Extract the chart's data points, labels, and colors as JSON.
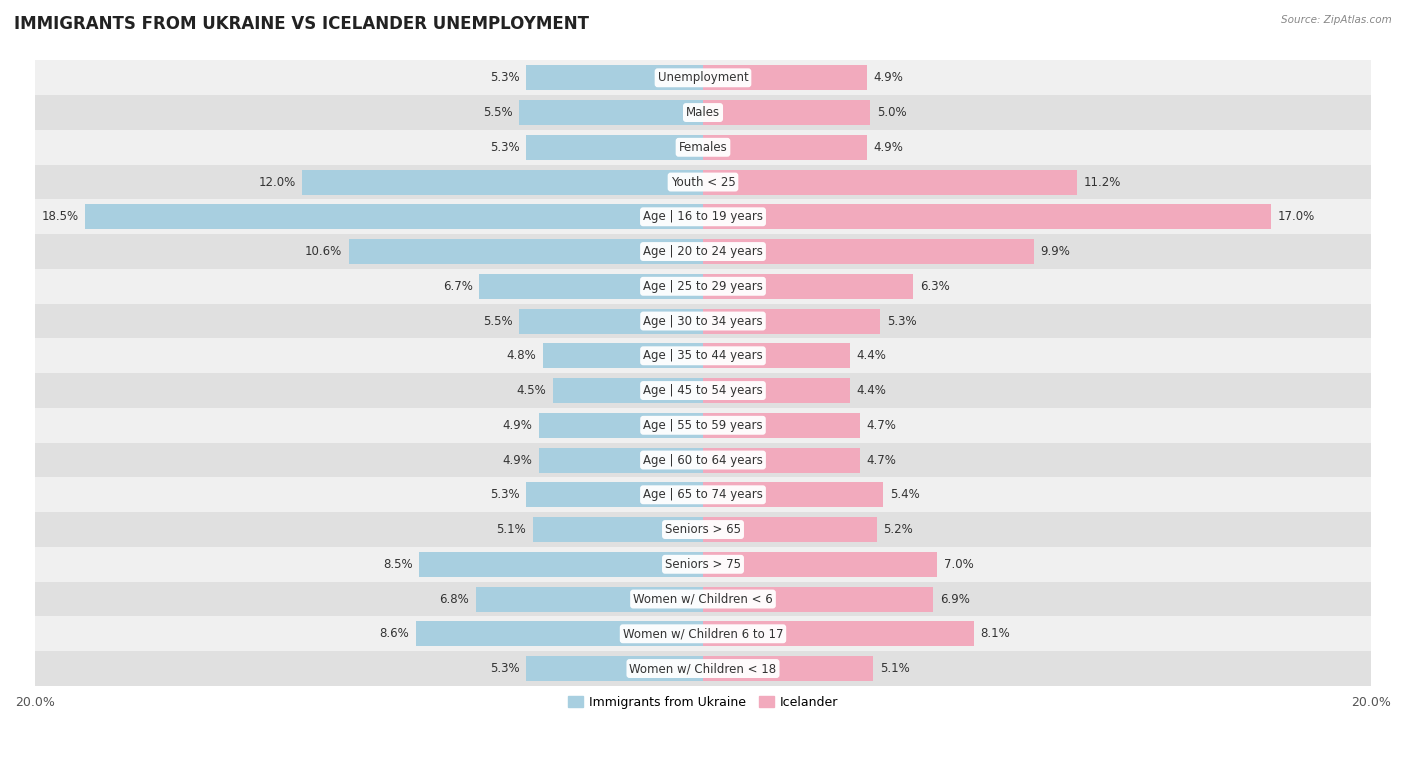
{
  "title": "IMMIGRANTS FROM UKRAINE VS ICELANDER UNEMPLOYMENT",
  "source": "Source: ZipAtlas.com",
  "categories": [
    "Unemployment",
    "Males",
    "Females",
    "Youth < 25",
    "Age | 16 to 19 years",
    "Age | 20 to 24 years",
    "Age | 25 to 29 years",
    "Age | 30 to 34 years",
    "Age | 35 to 44 years",
    "Age | 45 to 54 years",
    "Age | 55 to 59 years",
    "Age | 60 to 64 years",
    "Age | 65 to 74 years",
    "Seniors > 65",
    "Seniors > 75",
    "Women w/ Children < 6",
    "Women w/ Children 6 to 17",
    "Women w/ Children < 18"
  ],
  "ukraine_values": [
    5.3,
    5.5,
    5.3,
    12.0,
    18.5,
    10.6,
    6.7,
    5.5,
    4.8,
    4.5,
    4.9,
    4.9,
    5.3,
    5.1,
    8.5,
    6.8,
    8.6,
    5.3
  ],
  "icelander_values": [
    4.9,
    5.0,
    4.9,
    11.2,
    17.0,
    9.9,
    6.3,
    5.3,
    4.4,
    4.4,
    4.7,
    4.7,
    5.4,
    5.2,
    7.0,
    6.9,
    8.1,
    5.1
  ],
  "ukraine_color": "#a8cfe0",
  "icelander_color": "#f2aabd",
  "ukraine_label": "Immigrants from Ukraine",
  "icelander_label": "Icelander",
  "row_bg_light": "#f0f0f0",
  "row_bg_dark": "#e0e0e0",
  "max_val": 20.0,
  "title_fontsize": 12,
  "label_fontsize": 8.5,
  "value_fontsize": 8.5
}
